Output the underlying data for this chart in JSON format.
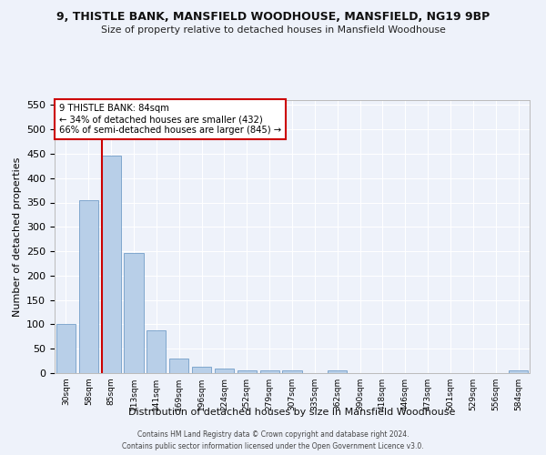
{
  "title": "9, THISTLE BANK, MANSFIELD WOODHOUSE, MANSFIELD, NG19 9BP",
  "subtitle": "Size of property relative to detached houses in Mansfield Woodhouse",
  "xlabel": "Distribution of detached houses by size in Mansfield Woodhouse",
  "ylabel": "Number of detached properties",
  "footer_line1": "Contains HM Land Registry data © Crown copyright and database right 2024.",
  "footer_line2": "Contains public sector information licensed under the Open Government Licence v3.0.",
  "annotation_title": "9 THISTLE BANK: 84sqm",
  "annotation_line1": "← 34% of detached houses are smaller (432)",
  "annotation_line2": "66% of semi-detached houses are larger (845) →",
  "bar_color": "#b8cfe8",
  "bar_edge_color": "#6090c0",
  "marker_color": "#cc0000",
  "background_color": "#eef2fa",
  "grid_color": "#ffffff",
  "categories": [
    "30sqm",
    "58sqm",
    "85sqm",
    "113sqm",
    "141sqm",
    "169sqm",
    "196sqm",
    "224sqm",
    "252sqm",
    "279sqm",
    "307sqm",
    "335sqm",
    "362sqm",
    "390sqm",
    "418sqm",
    "446sqm",
    "473sqm",
    "501sqm",
    "529sqm",
    "556sqm",
    "584sqm"
  ],
  "values": [
    100,
    355,
    447,
    246,
    88,
    30,
    13,
    9,
    6,
    5,
    5,
    0,
    5,
    0,
    0,
    0,
    0,
    0,
    0,
    0,
    5
  ],
  "ylim": [
    0,
    560
  ],
  "yticks": [
    0,
    50,
    100,
    150,
    200,
    250,
    300,
    350,
    400,
    450,
    500,
    550
  ]
}
